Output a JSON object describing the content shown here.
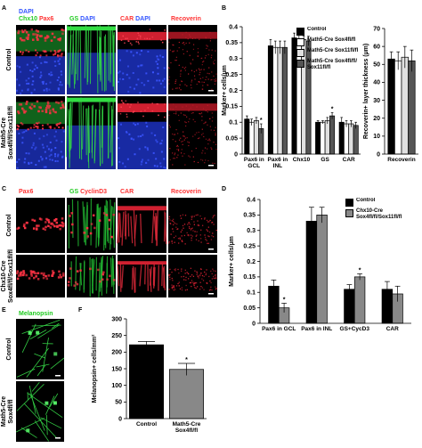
{
  "panel_labels": [
    "A",
    "B",
    "C",
    "D",
    "E",
    "F"
  ],
  "image_panels": [
    {
      "column_labels": [
        [
          [
            {
              "text": "DAPI",
              "color": "#3355ff"
            }
          ],
          [
            {
              "text": "Chx10",
              "color": "#22cc22"
            },
            {
              "text": "Pax6",
              "color": "#ff3333"
            }
          ]
        ],
        [
          [
            {
              "text": "GS",
              "color": "#22cc22"
            },
            {
              "text": "DAPI",
              "color": "#3355ff"
            }
          ]
        ],
        [
          [
            {
              "text": "CAR",
              "color": "#ff3333"
            },
            {
              "text": "DAPI",
              "color": "#3355ff"
            }
          ]
        ],
        [
          [
            {
              "text": "Recoverin",
              "color": "#ff3333"
            }
          ]
        ]
      ],
      "row_labels": [
        [
          "Control"
        ],
        [
          "Math5-Cre",
          "Sox4fl/fl/Sox11fl/fl"
        ]
      ]
    },
    {
      "column_labels": [
        [
          [
            {
              "text": "Pax6",
              "color": "#ff3333"
            }
          ]
        ],
        [
          [
            {
              "text": "GS",
              "color": "#22cc22"
            },
            {
              "text": "CyclinD3",
              "color": "#ff3333"
            }
          ]
        ],
        [
          [
            {
              "text": "CAR",
              "color": "#ff3333"
            }
          ]
        ],
        [
          [
            {
              "text": "Recoverin",
              "color": "#ff3333"
            }
          ]
        ]
      ],
      "row_labels": [
        [
          "Control"
        ],
        [
          "Chx10-Cre",
          "Sox4fl/fl/Sox11fl/fl"
        ]
      ]
    },
    {
      "column_labels": [
        [
          [
            {
              "text": "Melanopsin",
              "color": "#22cc22"
            }
          ]
        ]
      ],
      "row_labels": [
        [
          "Control"
        ],
        [
          "Math5-Cre",
          "Sox4fl/fl"
        ]
      ]
    }
  ],
  "chart_data": [
    {
      "type": "bar",
      "ylabel": "Marker+ cells/µm",
      "categories": [
        "Pax6 in GCL",
        "Pax6 in INL",
        "Chx10",
        "GS",
        "CAR"
      ],
      "series": [
        {
          "name": "Control",
          "color": "#000000",
          "values": [
            0.11,
            0.34,
            0.365,
            0.1,
            0.1
          ],
          "errors": [
            0.01,
            0.02,
            0.015,
            0.005,
            0.015
          ]
        },
        {
          "name": "Math5-Cre Sox4fl/fl",
          "color": "#ffffff",
          "values": [
            0.1,
            0.335,
            0.36,
            0.1,
            0.095
          ],
          "errors": [
            0.01,
            0.02,
            0.015,
            0.005,
            0.01
          ]
        },
        {
          "name": "Math5-Cre Sox11fl/fl",
          "color": "#e0e0e0",
          "values": [
            0.105,
            0.335,
            0.36,
            0.105,
            0.095
          ],
          "errors": [
            0.01,
            0.02,
            0.01,
            0.01,
            0.01
          ]
        },
        {
          "name": "Math5-Cre Sox4fl/fl/ Sox11fl/fl",
          "color": "#555555",
          "values": [
            0.08,
            0.335,
            0.355,
            0.12,
            0.09
          ],
          "errors": [
            0.015,
            0.02,
            0.015,
            0.01,
            0.01
          ],
          "annotations": [
            "*",
            null,
            null,
            "*",
            null
          ]
        }
      ],
      "ylim": [
        0,
        0.4
      ],
      "yticks": [
        0,
        0.05,
        0.1,
        0.15,
        0.2,
        0.25,
        0.3,
        0.35,
        0.4
      ],
      "legend": "upper right"
    },
    {
      "type": "bar",
      "ylabel": "Recoverin+ layer thickness (µm)",
      "categories": [
        "Recoverin"
      ],
      "series": [
        {
          "color": "#000000",
          "values": [
            53
          ],
          "errors": [
            4
          ]
        },
        {
          "color": "#ffffff",
          "values": [
            52
          ],
          "errors": [
            5
          ]
        },
        {
          "color": "#e0e0e0",
          "values": [
            54
          ],
          "errors": [
            6
          ]
        },
        {
          "color": "#555555",
          "values": [
            52
          ],
          "errors": [
            6
          ]
        }
      ],
      "ylim": [
        0,
        70
      ],
      "yticks": [
        0,
        10,
        20,
        30,
        40,
        50,
        60,
        70
      ]
    },
    {
      "type": "bar",
      "ylabel": "Marker+ cells/µm",
      "categories": [
        "Pax6 in GCL",
        "Pax6 in INL",
        "GS+CycD3",
        "CAR"
      ],
      "series": [
        {
          "name": "Control",
          "color": "#000000",
          "values": [
            0.12,
            0.33,
            0.11,
            0.11
          ],
          "errors": [
            0.02,
            0.045,
            0.015,
            0.025
          ]
        },
        {
          "name": "Chx10-Cre Sox4fl/fl/Sox11fl/fl",
          "color": "#888888",
          "values": [
            0.05,
            0.35,
            0.15,
            0.095
          ],
          "errors": [
            0.015,
            0.025,
            0.01,
            0.025
          ],
          "annotations": [
            "*",
            null,
            "*",
            null
          ]
        }
      ],
      "ylim": [
        0,
        0.4
      ],
      "yticks": [
        0,
        0.05,
        0.1,
        0.15,
        0.2,
        0.25,
        0.3,
        0.35,
        0.4
      ],
      "legend": "upper right"
    },
    {
      "type": "bar",
      "ylabel": "Melanopsin+ cells/mm²",
      "categories": [
        "Control",
        "Math5-Cre Sox4fl/fl"
      ],
      "series": [
        {
          "colors": [
            "#000000",
            "#888888"
          ],
          "values": [
            222,
            148
          ],
          "errors": [
            10,
            18
          ],
          "annotations": [
            null,
            "*"
          ]
        }
      ],
      "ylim": [
        0,
        300
      ],
      "yticks": [
        0,
        50,
        100,
        150,
        200,
        250,
        300
      ]
    }
  ]
}
